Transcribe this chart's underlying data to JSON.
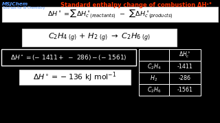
{
  "background_color": "#000000",
  "title_text": "Standard enthalpy change of combustion ΔHᶜ°",
  "title_color": "#ff3300",
  "logo_line1": "MSJChem",
  "logo_line2": "Tutorials for IB Chemistry",
  "logo_color": "#5599ff",
  "box1_bg": "#ffffff",
  "box2_bg": "#ffffff",
  "box3_bg": "#000000",
  "box3_border": "#ffffff",
  "box4_bg": "#ffffff",
  "table_bg": "#000000",
  "table_border": "#ffffff",
  "table_text": "#ffffff"
}
